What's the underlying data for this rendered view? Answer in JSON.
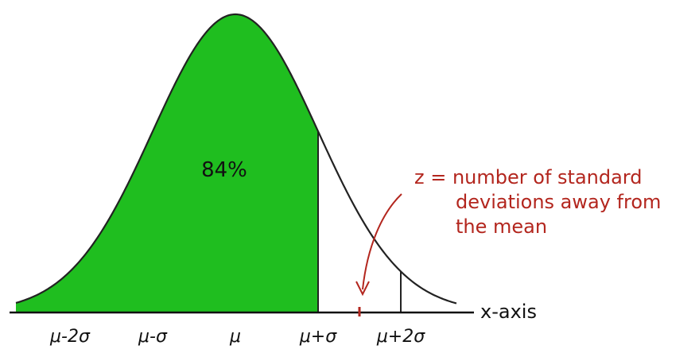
{
  "diagram": {
    "title": "",
    "shaded_area_label": "84%",
    "axis_label": "x-axis",
    "tick_labels": [
      "μ-2σ",
      "μ-σ",
      "μ",
      "μ+σ",
      "μ+2σ"
    ],
    "annotation_lines": [
      "z = number of standard",
      "deviations away from",
      "the mean"
    ],
    "colors": {
      "fill": "#1fbe1f",
      "curve": "#222222",
      "axis": "#111111",
      "annotation": "#b3261e"
    }
  },
  "chart_data": {
    "type": "area",
    "title": "",
    "distribution": "normal",
    "mean_label": "μ",
    "sd_label": "σ",
    "x_ticks": [
      -2,
      -1,
      0,
      1,
      2
    ],
    "x_tick_labels": [
      "μ-2σ",
      "μ-σ",
      "μ",
      "μ+σ",
      "μ+2σ"
    ],
    "shaded_region": {
      "from": "-inf",
      "to": 1,
      "percent": 84
    },
    "marked_z": 1.5,
    "xlabel": "x-axis",
    "ylabel": ""
  }
}
